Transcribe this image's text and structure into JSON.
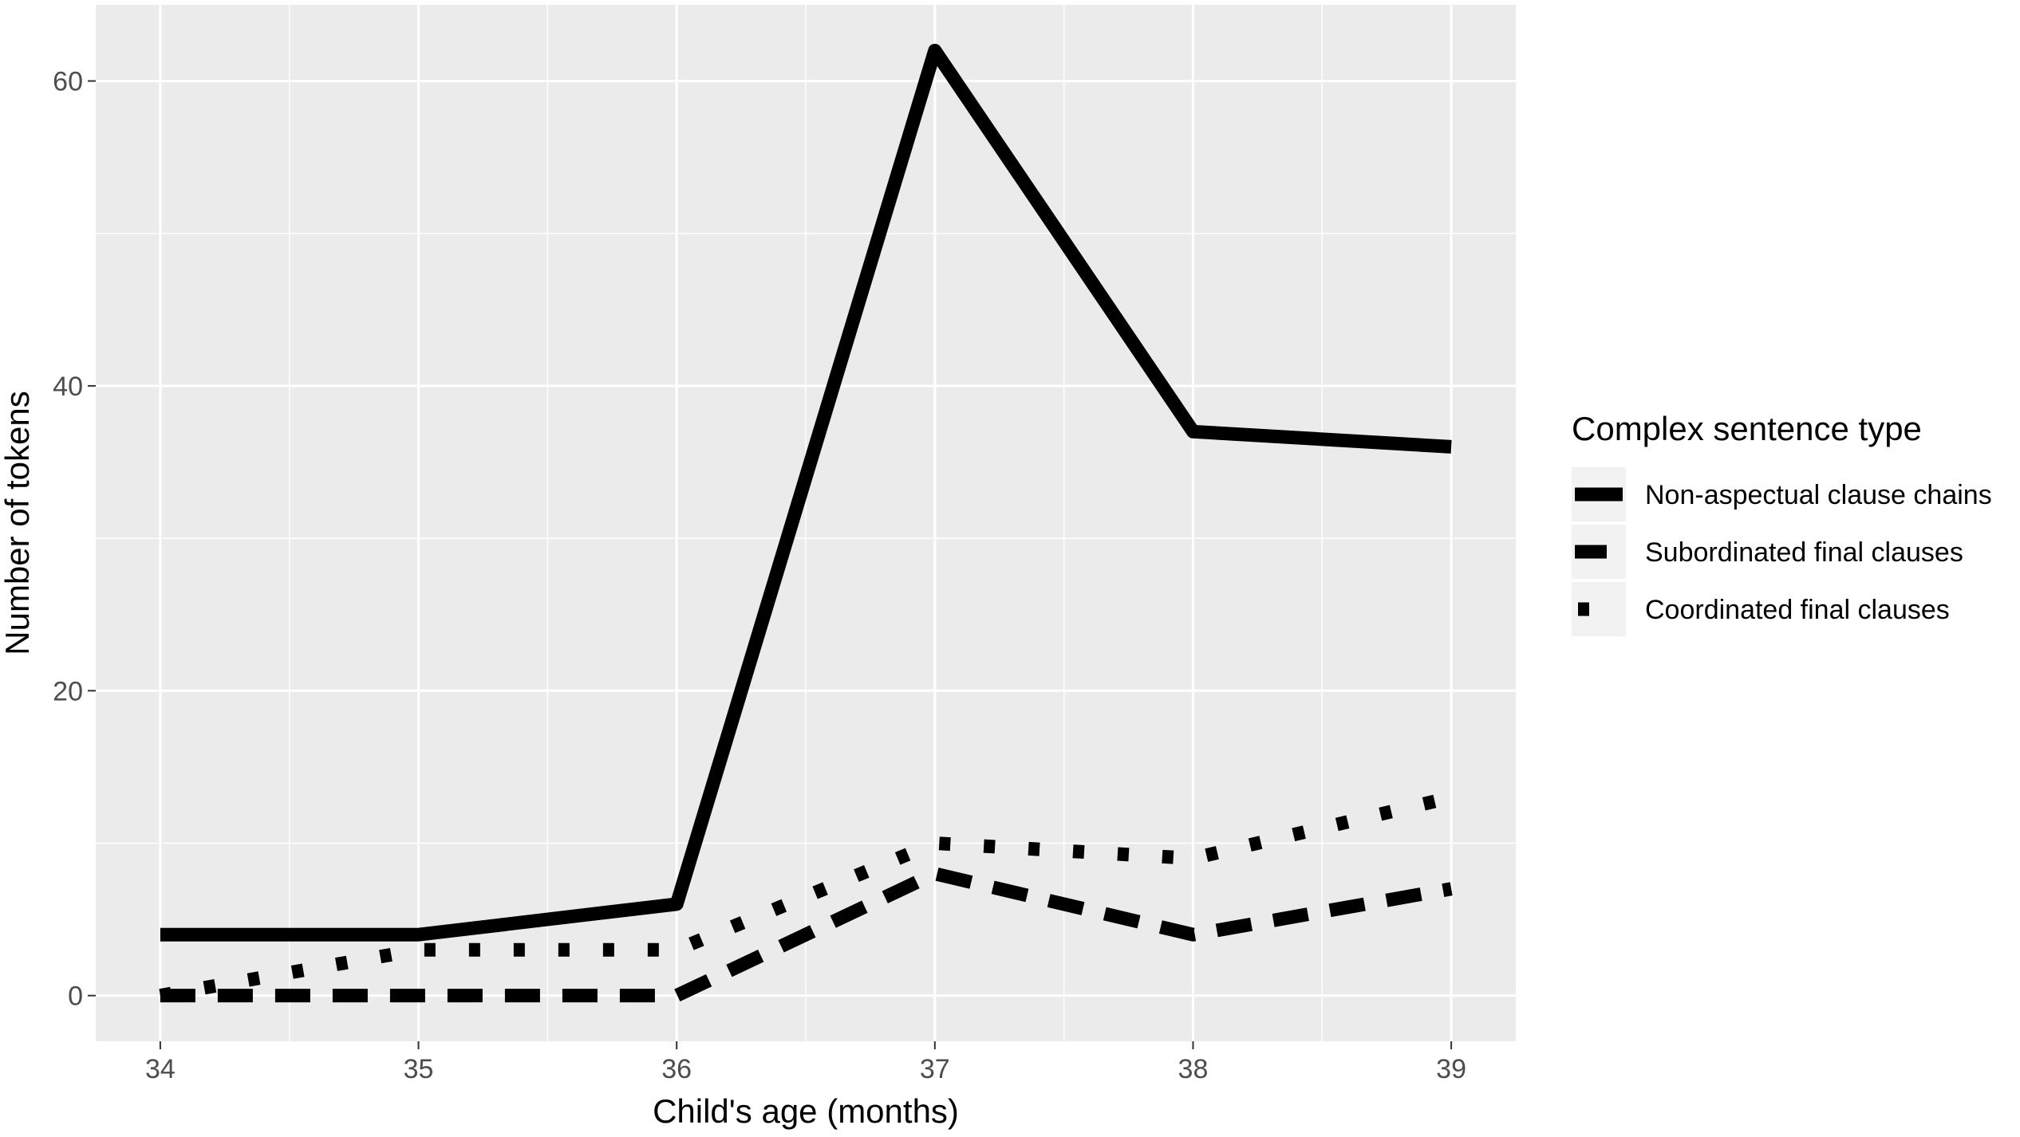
{
  "chart_data": {
    "type": "line",
    "title": "",
    "xlabel": "Child's age (months)",
    "ylabel": "Number of tokens",
    "x": [
      34,
      35,
      36,
      37,
      38,
      39
    ],
    "x_tick_labels": [
      "34",
      "35",
      "36",
      "37",
      "38",
      "39"
    ],
    "y_tick_labels": [
      "0",
      "20",
      "40",
      "60"
    ],
    "xlim": [
      33.75,
      39.25
    ],
    "ylim": [
      -3,
      65
    ],
    "y_ticks": [
      0,
      20,
      40,
      60
    ],
    "grid": true,
    "legend": {
      "title": "Complex sentence type",
      "position": "right"
    },
    "series": [
      {
        "name": "Non-aspectual clause chains",
        "linetype": "solid",
        "values": [
          4,
          4,
          6,
          62,
          37,
          36
        ]
      },
      {
        "name": "Subordinated final clauses",
        "linetype": "dashed",
        "values": [
          0,
          0,
          0,
          8,
          4,
          7
        ]
      },
      {
        "name": "Coordinated final clauses",
        "linetype": "dotted",
        "values": [
          0,
          3,
          3,
          10,
          9,
          13
        ]
      }
    ],
    "colors": {
      "panel": "#ebebeb",
      "grid": "#ffffff",
      "line": "#000000"
    }
  }
}
